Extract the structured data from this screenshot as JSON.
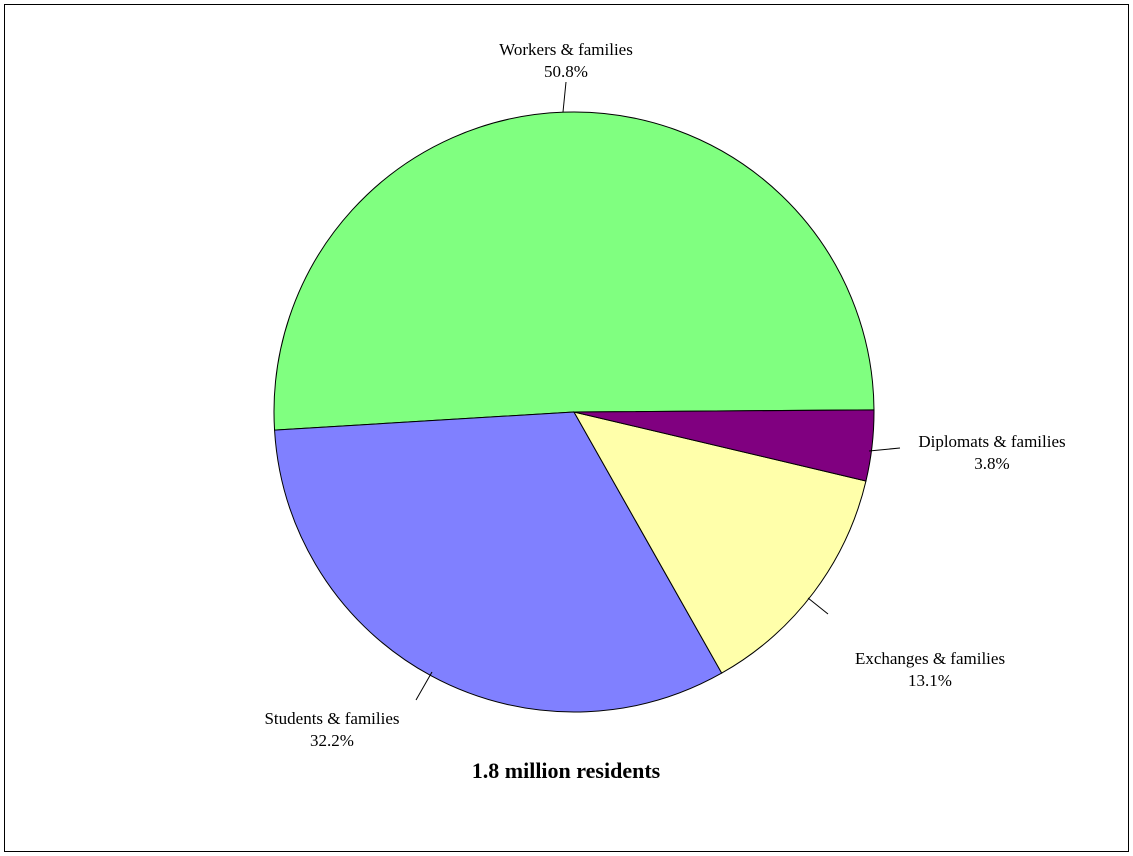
{
  "chart_data": {
    "type": "pie",
    "title": "1.8 million residents",
    "slices": [
      {
        "name": "Workers & families",
        "value": 50.8,
        "label": "50.8%",
        "color": "#80FF80"
      },
      {
        "name": "Students & families",
        "value": 32.2,
        "label": "32.2%",
        "color": "#8080FF"
      },
      {
        "name": "Exchanges & families",
        "value": 13.1,
        "label": "13.1%",
        "color": "#FFFFAA"
      },
      {
        "name": "Diplomats & families",
        "value": 3.8,
        "label": "3.8%",
        "color": "#800080"
      }
    ],
    "legend": "none"
  }
}
